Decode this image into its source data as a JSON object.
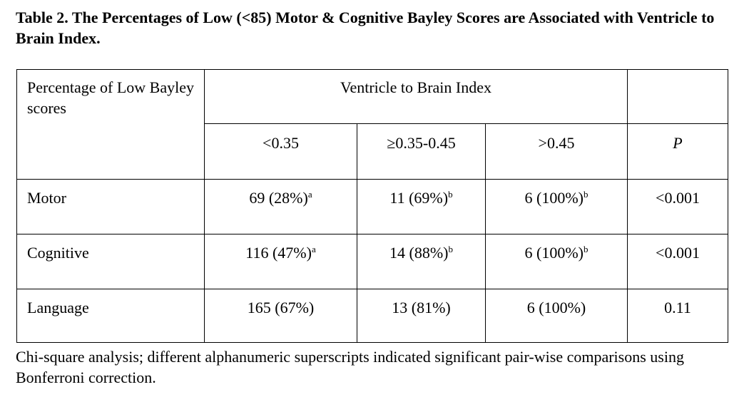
{
  "title": "Table 2. The Percentages of Low (<85) Motor & Cognitive Bayley Scores are Associated with Ventricle to Brain Index.",
  "table": {
    "corner_label": "Percentage of Low Bayley scores",
    "group_header": "Ventricle to Brain Index",
    "columns": [
      "<0.35",
      "≥0.35-0.45",
      ">0.45",
      "P"
    ],
    "rows": [
      {
        "label": "Motor",
        "cells": [
          {
            "value": "69 (28%)",
            "sup": "a"
          },
          {
            "value": "11 (69%)",
            "sup": "b"
          },
          {
            "value": "6 (100%)",
            "sup": "b"
          },
          {
            "value": "<0.001",
            "sup": ""
          }
        ]
      },
      {
        "label": "Cognitive",
        "cells": [
          {
            "value": "116 (47%)",
            "sup": "a"
          },
          {
            "value": "14 (88%)",
            "sup": "b"
          },
          {
            "value": "6 (100%)",
            "sup": "b"
          },
          {
            "value": "<0.001",
            "sup": ""
          }
        ]
      },
      {
        "label": "Language",
        "cells": [
          {
            "value": "165 (67%)",
            "sup": ""
          },
          {
            "value": "13 (81%)",
            "sup": ""
          },
          {
            "value": "6 (100%)",
            "sup": ""
          },
          {
            "value": "0.11",
            "sup": ""
          }
        ]
      }
    ]
  },
  "footnote": "Chi-square analysis; different alphanumeric superscripts indicated significant pair-wise comparisons using Bonferroni correction."
}
